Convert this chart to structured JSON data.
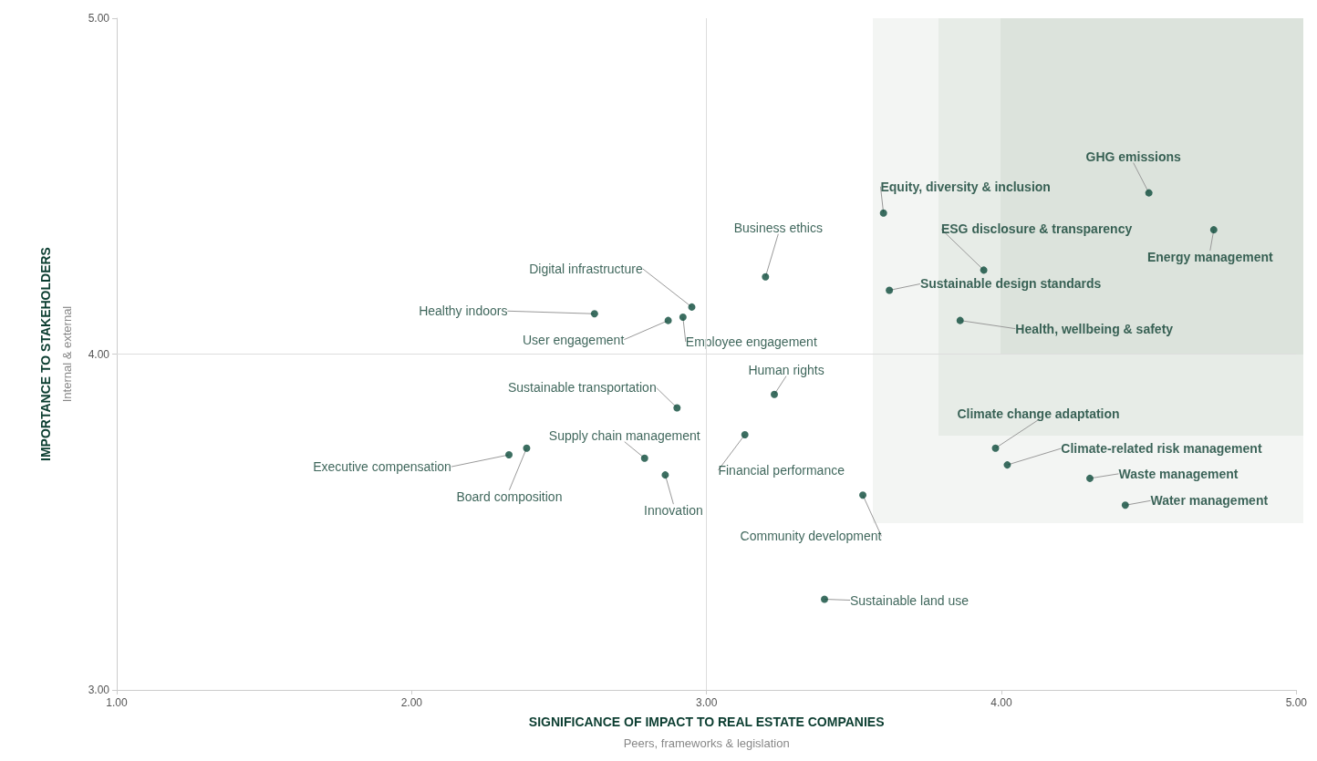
{
  "chart_data": {
    "type": "scatter",
    "xlabel": "SIGNIFICANCE OF IMPACT TO REAL ESTATE COMPANIES\nPeers, frameworks & legislation",
    "ylabel": "IMPORTANCE TO STAKEHOLDERS\nInternal & external",
    "xlim": [
      1,
      5
    ],
    "ylim": [
      3,
      5
    ],
    "xticks": [
      {
        "value": 1,
        "label": "1.00"
      },
      {
        "value": 2,
        "label": "2.00"
      },
      {
        "value": 3,
        "label": "3.00"
      },
      {
        "value": 4,
        "label": "4.00"
      },
      {
        "value": 5,
        "label": "5.00"
      }
    ],
    "yticks": [
      {
        "value": 3,
        "label": "3.00"
      },
      {
        "value": 4,
        "label": "4.00"
      },
      {
        "value": 5,
        "label": "5.00"
      }
    ],
    "grid": false,
    "marker": "circle",
    "series": [
      {
        "color": "#0b4a3a",
        "x": [
          3.2,
          2.95,
          2.92,
          2.87,
          2.62,
          2.9,
          3.23,
          3.13,
          2.79,
          2.33,
          2.39,
          2.86,
          3.53,
          3.4
        ],
        "values": [
          4.23,
          4.14,
          4.11,
          4.1,
          4.12,
          3.84,
          3.88,
          3.76,
          3.69,
          3.7,
          3.72,
          3.64,
          3.58,
          3.27
        ]
      },
      {
        "color": "#0b4a3a",
        "x": [
          4.5,
          4.72,
          3.6,
          3.94,
          3.62,
          3.86,
          3.98,
          4.02,
          4.3,
          4.42
        ],
        "values": [
          4.48,
          4.37,
          4.42,
          4.25,
          4.19,
          4.1,
          3.72,
          3.67,
          3.63,
          3.55
        ]
      }
    ],
    "annotations": [
      {
        "text": "Business ethics",
        "x": 3.2,
        "y": 4.23
      },
      {
        "text": "Digital infrastructure",
        "x": 2.95,
        "y": 4.14
      },
      {
        "text": "Employee engagement",
        "x": 2.92,
        "y": 4.11
      },
      {
        "text": "User engagement",
        "x": 2.87,
        "y": 4.1
      },
      {
        "text": "Healthy indoors",
        "x": 2.62,
        "y": 4.12
      },
      {
        "text": "Sustainable transportation",
        "x": 2.9,
        "y": 3.84
      },
      {
        "text": "Human rights",
        "x": 3.23,
        "y": 3.88
      },
      {
        "text": "Financial performance",
        "x": 3.13,
        "y": 3.76
      },
      {
        "text": "Supply chain management",
        "x": 2.79,
        "y": 3.69
      },
      {
        "text": "Executive compensation",
        "x": 2.33,
        "y": 3.7
      },
      {
        "text": "Board composition",
        "x": 2.39,
        "y": 3.72
      },
      {
        "text": "Innovation",
        "x": 2.86,
        "y": 3.64
      },
      {
        "text": "Community development",
        "x": 3.53,
        "y": 3.58
      },
      {
        "text": "Sustainable land use",
        "x": 3.4,
        "y": 3.27
      },
      {
        "text": "GHG emissions",
        "x": 4.5,
        "y": 4.48
      },
      {
        "text": "Energy management",
        "x": 4.72,
        "y": 4.37
      },
      {
        "text": "Equity, diversity & inclusion",
        "x": 3.6,
        "y": 4.42
      },
      {
        "text": "ESG disclosure & transparency",
        "x": 3.94,
        "y": 4.25
      },
      {
        "text": "Sustainable design standards",
        "x": 3.62,
        "y": 4.19
      },
      {
        "text": "Health, wellbeing & safety",
        "x": 3.86,
        "y": 4.1
      },
      {
        "text": "Climate change adaptation",
        "x": 3.98,
        "y": 3.72
      },
      {
        "text": "Climate-related risk management",
        "x": 4.02,
        "y": 3.67
      },
      {
        "text": "Waste management",
        "x": 4.3,
        "y": 3.63
      },
      {
        "text": "Water management",
        "x": 4.42,
        "y": 3.55
      }
    ],
    "ref_lines": [
      {
        "axis": "x",
        "value": 3,
        "color": "#dddddd"
      },
      {
        "axis": "y",
        "value": 4,
        "color": "#dddddd"
      }
    ]
  }
}
